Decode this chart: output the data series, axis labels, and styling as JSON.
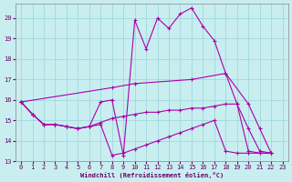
{
  "xlabel": "Windchill (Refroidissement éolien,°C)",
  "xlim": [
    -0.5,
    23.5
  ],
  "ylim": [
    13,
    20.7
  ],
  "yticks": [
    13,
    14,
    15,
    16,
    17,
    18,
    19,
    20
  ],
  "xticks": [
    0,
    1,
    2,
    3,
    4,
    5,
    6,
    7,
    8,
    9,
    10,
    11,
    12,
    13,
    14,
    15,
    16,
    17,
    18,
    19,
    20,
    21,
    22,
    23
  ],
  "bg_color": "#c8eef0",
  "grid_color": "#a0d8dc",
  "line_color": "#aa00aa",
  "line1_x": [
    0,
    1,
    2,
    3,
    4,
    5,
    6,
    7,
    8,
    9,
    10,
    11,
    12,
    13,
    14,
    15,
    16,
    17,
    18,
    19,
    20,
    21,
    22
  ],
  "line1_y": [
    15.9,
    15.3,
    14.8,
    14.8,
    14.7,
    14.6,
    14.7,
    15.9,
    16.0,
    13.3,
    19.9,
    18.5,
    20.0,
    19.5,
    20.2,
    20.5,
    19.6,
    18.9,
    17.3,
    15.8,
    14.6,
    13.5,
    13.4
  ],
  "line2_x": [
    0,
    8,
    10,
    15,
    18,
    20,
    21,
    22
  ],
  "line2_y": [
    15.9,
    16.6,
    16.8,
    17.0,
    17.3,
    15.8,
    14.6,
    13.4
  ],
  "line3_x": [
    0,
    1,
    2,
    3,
    4,
    5,
    6,
    7,
    8,
    9,
    10,
    11,
    12,
    13,
    14,
    15,
    16,
    17,
    18,
    19,
    20,
    21,
    22
  ],
  "line3_y": [
    15.9,
    15.3,
    14.8,
    14.8,
    14.7,
    14.6,
    14.7,
    14.9,
    15.1,
    15.2,
    15.3,
    15.4,
    15.4,
    15.5,
    15.5,
    15.6,
    15.6,
    15.7,
    15.8,
    15.8,
    13.5,
    13.4,
    13.4
  ],
  "line4_x": [
    0,
    1,
    2,
    3,
    4,
    5,
    6,
    7,
    8,
    9,
    10,
    11,
    12,
    13,
    14,
    15,
    16,
    17,
    18,
    19,
    20,
    21,
    22
  ],
  "line4_y": [
    15.9,
    15.3,
    14.8,
    14.8,
    14.7,
    14.6,
    14.7,
    14.8,
    13.3,
    13.4,
    13.6,
    13.8,
    14.0,
    14.2,
    14.4,
    14.6,
    14.8,
    15.0,
    13.5,
    13.4,
    13.4,
    13.4,
    13.4
  ]
}
